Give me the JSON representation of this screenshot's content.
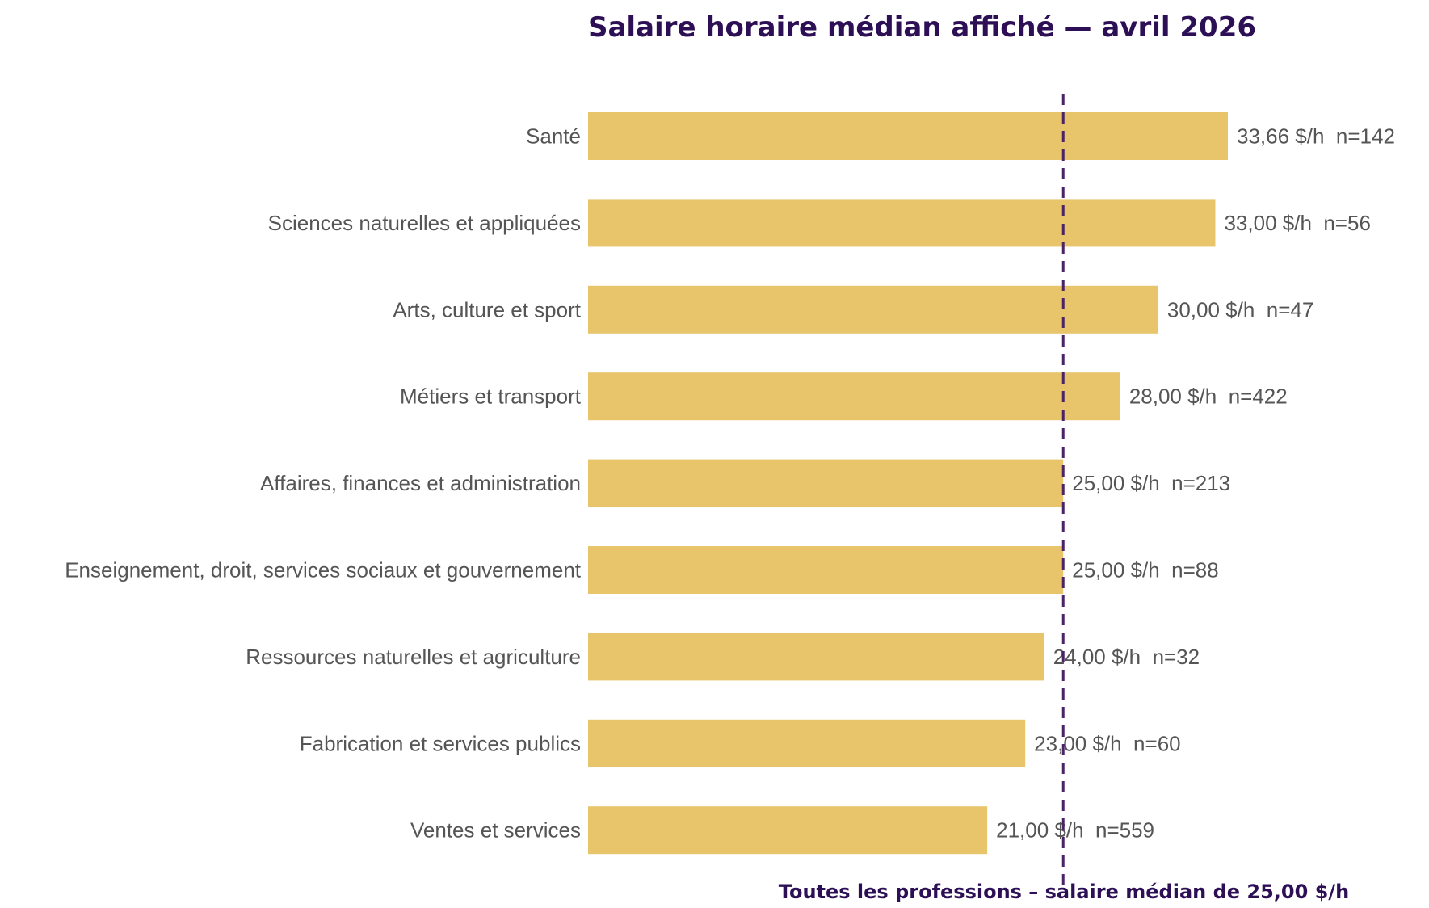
{
  "chart_data": {
    "type": "bar",
    "orientation": "horizontal",
    "title": "Salaire horaire médian affiché — avril 2026",
    "categories": [
      "Santé",
      "Sciences naturelles et appliquées",
      "Arts, culture et sport",
      "Métiers et transport",
      "Affaires, finances et administration",
      "Enseignement, droit, services sociaux et gouvernement",
      "Ressources naturelles et agriculture",
      "Fabrication et services publics",
      "Ventes et services"
    ],
    "values": [
      33.66,
      33.0,
      30.0,
      28.0,
      25.0,
      25.0,
      24.0,
      23.0,
      21.0
    ],
    "value_labels": [
      "33,66 $/h  n=142",
      "33,00 $/h  n=56",
      "30,00 $/h  n=47",
      "28,00 $/h  n=422",
      "25,00 $/h  n=213",
      "25,00 $/h  n=88",
      "24,00 $/h  n=32",
      "23,00 $/h  n=60",
      "21,00 $/h  n=559"
    ],
    "reference_line": {
      "value": 25.0,
      "label": "Toutes les professions – salaire médian de 25,00 $/h",
      "style": "dashed"
    },
    "xlim": [
      0,
      33.66
    ],
    "grid": false,
    "colors": {
      "bar": "#e8c46a",
      "reference_line": "#4a2466",
      "title": "#2d0f55",
      "text": "#555555"
    }
  }
}
